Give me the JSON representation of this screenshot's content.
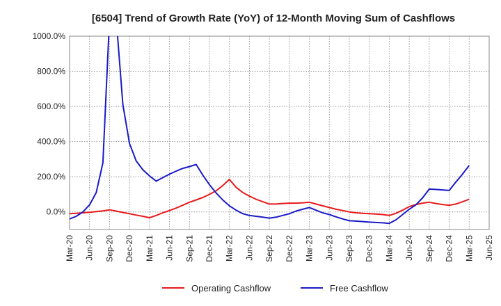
{
  "chart_data": {
    "type": "line",
    "title": "[6504]  Trend of Growth Rate (YoY) of 12-Month Moving Sum of Cashflows",
    "xlabel": "",
    "ylabel": "",
    "ylim": [
      -100,
      1000
    ],
    "y_ticks": [
      0,
      200,
      400,
      600,
      800,
      1000
    ],
    "y_tick_labels": [
      "0.0%",
      "200.0%",
      "400.0%",
      "600.0%",
      "800.0%",
      "1000.0%"
    ],
    "x_tick_labels": [
      "Mar-20",
      "Jun-20",
      "Sep-20",
      "Dec-20",
      "Mar-21",
      "Jun-21",
      "Sep-21",
      "Dec-21",
      "Mar-22",
      "Jun-22",
      "Sep-22",
      "Dec-22",
      "Mar-23",
      "Jun-23",
      "Sep-23",
      "Dec-23",
      "Mar-24",
      "Jun-24",
      "Sep-24",
      "Dec-24",
      "Mar-25",
      "Jun-25"
    ],
    "x": [
      "Mar-20",
      "Apr-20",
      "May-20",
      "Jun-20",
      "Jul-20",
      "Aug-20",
      "Sep-20",
      "Oct-20",
      "Nov-20",
      "Dec-20",
      "Jan-21",
      "Feb-21",
      "Mar-21",
      "Apr-21",
      "May-21",
      "Jun-21",
      "Jul-21",
      "Aug-21",
      "Sep-21",
      "Oct-21",
      "Nov-21",
      "Dec-21",
      "Jan-22",
      "Feb-22",
      "Mar-22",
      "Apr-22",
      "May-22",
      "Jun-22",
      "Jul-22",
      "Aug-22",
      "Sep-22",
      "Oct-22",
      "Nov-22",
      "Dec-22",
      "Jan-23",
      "Feb-23",
      "Mar-23",
      "Apr-23",
      "May-23",
      "Jun-23",
      "Jul-23",
      "Aug-23",
      "Sep-23",
      "Oct-23",
      "Nov-23",
      "Dec-23",
      "Jan-24",
      "Feb-24",
      "Mar-24",
      "Apr-24",
      "May-24",
      "Jun-24",
      "Jul-24",
      "Aug-24",
      "Sep-24",
      "Oct-24",
      "Nov-24",
      "Dec-24",
      "Jan-25",
      "Feb-25",
      "Mar-25"
    ],
    "grid": true,
    "legend_position": "bottom-center",
    "series": [
      {
        "name": "Operating Cashflow",
        "color": "#e8191b",
        "values": [
          -10,
          -8,
          -5,
          -2,
          2,
          6,
          12,
          5,
          -3,
          -10,
          -18,
          -25,
          -33,
          -20,
          -5,
          8,
          22,
          38,
          55,
          68,
          82,
          100,
          120,
          150,
          185,
          140,
          110,
          90,
          72,
          58,
          45,
          45,
          48,
          50,
          50,
          52,
          55,
          45,
          35,
          25,
          15,
          8,
          0,
          -5,
          -8,
          -10,
          -12,
          -15,
          -20,
          -8,
          10,
          30,
          42,
          50,
          55,
          48,
          42,
          38,
          45,
          58,
          72
        ]
      },
      {
        "name": "Free Cashflow",
        "color": "#1a1ac8",
        "values": [
          -40,
          -25,
          0,
          40,
          110,
          280,
          1100,
          1100,
          610,
          390,
          290,
          240,
          205,
          175,
          195,
          215,
          232,
          248,
          258,
          270,
          210,
          155,
          108,
          68,
          35,
          10,
          -10,
          -20,
          -25,
          -30,
          -35,
          -30,
          -20,
          -10,
          5,
          15,
          25,
          10,
          -5,
          -15,
          -28,
          -40,
          -50,
          -52,
          -55,
          -58,
          -60,
          -62,
          -65,
          -45,
          -15,
          15,
          40,
          80,
          130,
          128,
          125,
          122,
          170,
          215,
          265
        ]
      }
    ]
  }
}
